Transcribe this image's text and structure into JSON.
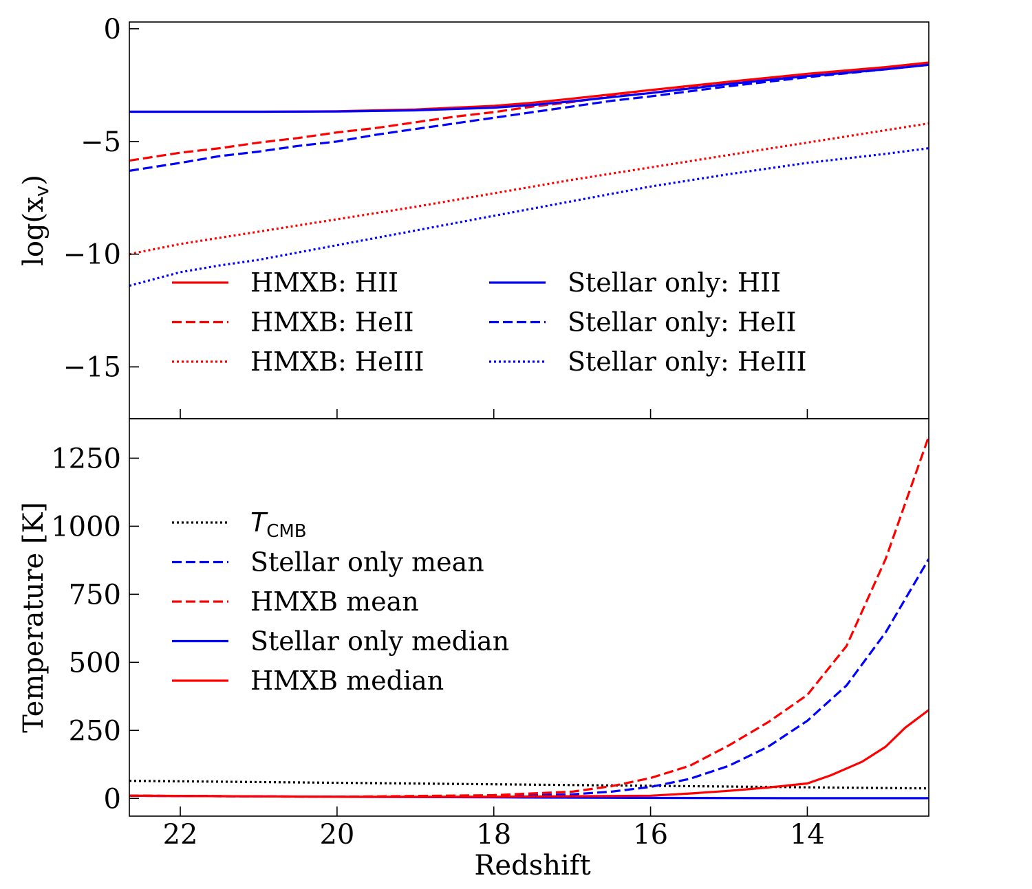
{
  "chart_data": [
    {
      "type": "line",
      "panel": "top",
      "ylabel": "log(x_v)",
      "ylabel_main": "log(x",
      "ylabel_sub": "v",
      "ylabel_close": ")",
      "xlabel": "",
      "xlim": [
        22.65,
        12.45
      ],
      "ylim": [
        -17.3,
        0.3
      ],
      "yticks": [
        0,
        -5,
        -10,
        -15
      ],
      "ytick_labels": [
        "0",
        "−5",
        "−10",
        "−15"
      ],
      "xticks": [
        22,
        20,
        18,
        16,
        14
      ],
      "legend_position": "lower-center",
      "series": [
        {
          "name": "HMXB: HII",
          "color": "#ff0000",
          "dash": "solid",
          "x": [
            22.65,
            21,
            20,
            19,
            18,
            17.5,
            17,
            16,
            15,
            14,
            13,
            12.45
          ],
          "y": [
            -3.68,
            -3.68,
            -3.66,
            -3.58,
            -3.42,
            -3.28,
            -3.1,
            -2.72,
            -2.35,
            -2.0,
            -1.7,
            -1.5
          ]
        },
        {
          "name": "HMXB: HeII",
          "color": "#ff0000",
          "dash": "dashed",
          "x": [
            22.65,
            22,
            21.5,
            21,
            20.5,
            20,
            19.5,
            19,
            18.5,
            18,
            17.5,
            17,
            16.5,
            16,
            15,
            14,
            13,
            12.45
          ],
          "y": [
            -5.85,
            -5.5,
            -5.3,
            -5.05,
            -4.85,
            -4.6,
            -4.4,
            -4.15,
            -3.9,
            -3.7,
            -3.45,
            -3.25,
            -3.0,
            -2.85,
            -2.4,
            -2.05,
            -1.72,
            -1.55
          ]
        },
        {
          "name": "HMXB: HeIII",
          "color": "#ff0000",
          "dash": "dotted",
          "x": [
            22.65,
            22,
            21,
            20,
            19,
            18,
            17,
            16,
            15,
            14,
            13,
            12.45
          ],
          "y": [
            -10.0,
            -9.55,
            -9.0,
            -8.45,
            -7.9,
            -7.3,
            -6.7,
            -6.15,
            -5.6,
            -5.05,
            -4.5,
            -4.2
          ]
        },
        {
          "name": "Stellar only: HII",
          "color": "#0000ff",
          "dash": "solid",
          "x": [
            22.65,
            21,
            20,
            19,
            18,
            17.5,
            17,
            16,
            15,
            14,
            13,
            12.45
          ],
          "y": [
            -3.68,
            -3.68,
            -3.67,
            -3.62,
            -3.5,
            -3.38,
            -3.22,
            -2.85,
            -2.45,
            -2.1,
            -1.8,
            -1.6
          ]
        },
        {
          "name": "Stellar only: HeII",
          "color": "#0000ff",
          "dash": "dashed",
          "x": [
            22.65,
            22,
            21.5,
            21,
            20.5,
            20,
            19.5,
            19,
            18.5,
            18,
            17.5,
            17,
            16.5,
            16,
            15,
            14,
            13,
            12.45
          ],
          "y": [
            -6.3,
            -5.95,
            -5.65,
            -5.45,
            -5.2,
            -5.0,
            -4.7,
            -4.45,
            -4.2,
            -3.95,
            -3.7,
            -3.45,
            -3.2,
            -3.0,
            -2.55,
            -2.15,
            -1.8,
            -1.6
          ]
        },
        {
          "name": "Stellar only: HeIII",
          "color": "#0000ff",
          "dash": "dotted",
          "x": [
            22.65,
            22,
            21.5,
            21,
            20,
            19,
            18,
            17,
            16,
            15,
            14,
            13,
            12.45
          ],
          "y": [
            -11.4,
            -10.8,
            -10.5,
            -10.25,
            -9.6,
            -8.95,
            -8.3,
            -7.65,
            -7.0,
            -6.45,
            -5.95,
            -5.55,
            -5.3
          ]
        }
      ]
    },
    {
      "type": "line",
      "panel": "bottom",
      "ylabel": "Temperature [K]",
      "xlabel": "Redshift",
      "xlim": [
        22.65,
        12.45
      ],
      "ylim": [
        -65,
        1395
      ],
      "yticks": [
        0,
        250,
        500,
        750,
        1000,
        1250
      ],
      "ytick_labels": [
        "0",
        "250",
        "500",
        "750",
        "1000",
        "1250"
      ],
      "xticks": [
        22,
        20,
        18,
        16,
        14
      ],
      "xtick_labels": [
        "22",
        "20",
        "18",
        "16",
        "14"
      ],
      "legend_position": "upper-left",
      "series": [
        {
          "name": "T_CMB",
          "label_main": "T",
          "label_sub": "CMB",
          "color": "#000000",
          "dash": "dotted",
          "x": [
            22.65,
            20,
            18,
            16,
            14,
            12.45
          ],
          "y": [
            64.5,
            57.5,
            51.9,
            46.5,
            40.8,
            36.7
          ]
        },
        {
          "name": "Stellar only mean",
          "color": "#0000ff",
          "dash": "dashed",
          "x": [
            22.65,
            20,
            18,
            17,
            16.5,
            16,
            15.5,
            15,
            14.5,
            14,
            13.5,
            13,
            12.45
          ],
          "y": [
            10,
            6,
            8,
            15,
            25,
            42,
            72,
            120,
            190,
            285,
            415,
            610,
            880
          ]
        },
        {
          "name": "HMXB mean",
          "color": "#ff0000",
          "dash": "dashed",
          "x": [
            22.65,
            20,
            18,
            17,
            16.5,
            16,
            15.5,
            15,
            14.5,
            14,
            13.5,
            13,
            12.45
          ],
          "y": [
            10,
            6,
            12,
            25,
            45,
            75,
            120,
            195,
            280,
            380,
            560,
            880,
            1330
          ]
        },
        {
          "name": "Stellar only median",
          "color": "#0000ff",
          "dash": "solid",
          "x": [
            22.65,
            20,
            18,
            16,
            14,
            12.45
          ],
          "y": [
            10,
            6,
            4,
            2,
            1,
            1
          ]
        },
        {
          "name": "HMXB median",
          "color": "#ff0000",
          "dash": "solid",
          "x": [
            22.65,
            20,
            18,
            16,
            15.5,
            15,
            14.5,
            14,
            13.7,
            13.3,
            13,
            12.75,
            12.45
          ],
          "y": [
            10,
            6,
            6,
            10,
            18,
            28,
            40,
            55,
            85,
            135,
            190,
            260,
            325
          ]
        }
      ]
    }
  ]
}
